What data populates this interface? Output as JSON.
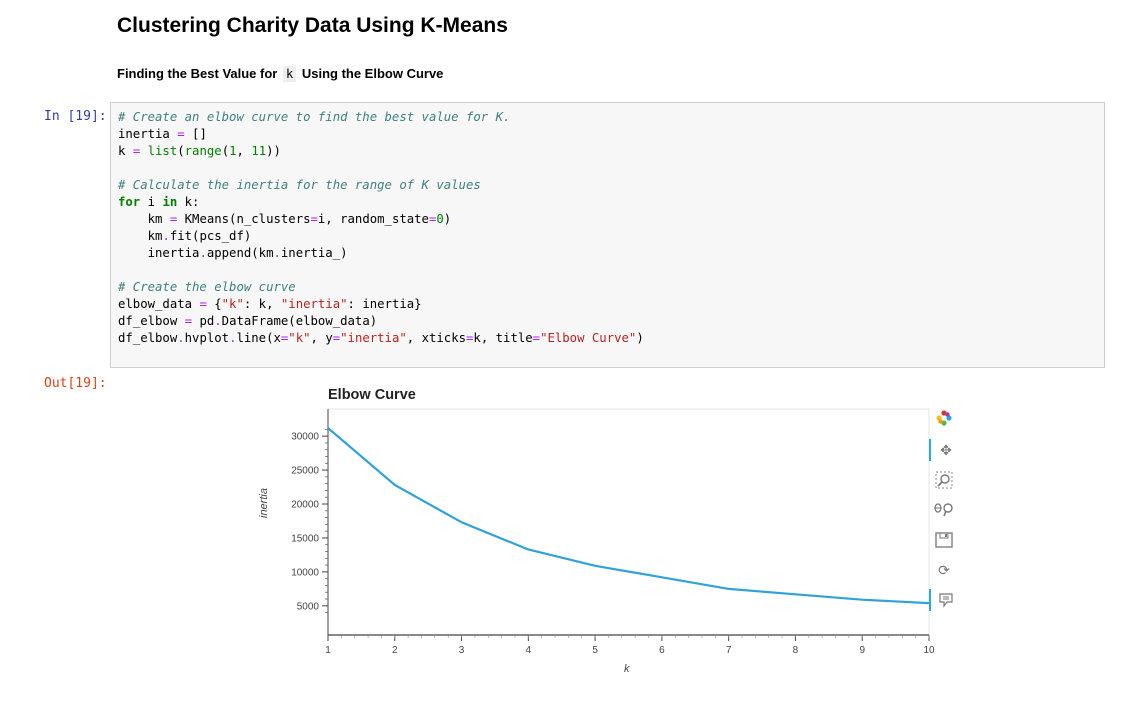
{
  "header": {
    "title": "Clustering Charity Data Using K-Means",
    "subtitle_before": "Finding the Best Value for",
    "subtitle_code": "k",
    "subtitle_after": "Using the Elbow Curve"
  },
  "cell": {
    "in_prompt": "In [19]:",
    "out_prompt": "Out[19]:"
  },
  "chart_data": {
    "type": "line",
    "title": "Elbow Curve",
    "xlabel": "k",
    "ylabel": "inertia",
    "x": [
      1,
      2,
      3,
      4,
      5,
      6,
      7,
      8,
      9,
      10
    ],
    "y": [
      31200,
      22800,
      17300,
      13300,
      10900,
      9200,
      7500,
      6700,
      5900,
      5400
    ],
    "xticks": [
      "1",
      "2",
      "3",
      "4",
      "5",
      "6",
      "7",
      "8",
      "9",
      "10"
    ],
    "yticks": [
      5000,
      10000,
      15000,
      20000,
      25000,
      30000
    ],
    "line_color": "#30a2da",
    "grid": false
  },
  "toolbar": {
    "icons": [
      "bokeh-logo-icon",
      "pan-icon",
      "box-zoom-icon",
      "wheel-zoom-icon",
      "save-icon",
      "reset-icon",
      "hover-icon"
    ]
  }
}
